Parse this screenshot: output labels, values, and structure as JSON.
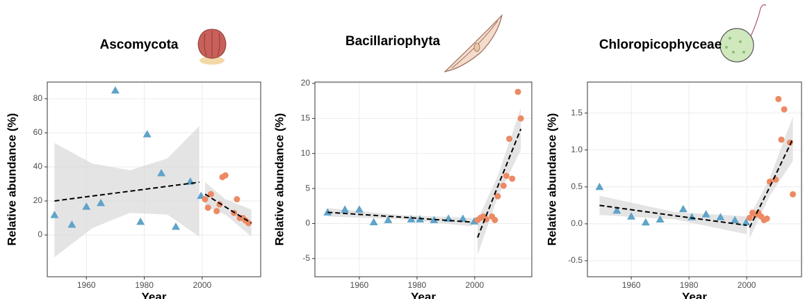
{
  "chart_data": [
    {
      "type": "scatter",
      "title": "Ascomycota",
      "x_label": "Year",
      "y_label": "Relative abundance (%)",
      "xlim": [
        1946.5,
        2020.2
      ],
      "ylim": [
        -24.5,
        89.8
      ],
      "xticks": [
        1960,
        1980,
        2000
      ],
      "yticks": [
        0,
        20,
        40,
        60,
        80
      ],
      "grid": true,
      "series": [
        {
          "color": "#5fa3c9",
          "marker": "triangle",
          "x": [
            1949,
            1955,
            1960,
            1965,
            1970,
            1978.7,
            1981,
            1985.9,
            1990.9,
            1995.9,
            1999.6
          ],
          "values": [
            11.8,
            6.1,
            16.7,
            18.8,
            84.9,
            7.8,
            59.2,
            36.3,
            4.9,
            31.4,
            23
          ]
        },
        {
          "color": "#ec8a63",
          "marker": "circle",
          "x": [
            2001,
            2002,
            2003,
            2005,
            2006,
            2007,
            2008,
            2011,
            2012,
            2013,
            2014,
            2015,
            2016
          ],
          "values": [
            21,
            16,
            24,
            14,
            18,
            34,
            35,
            13,
            21,
            10,
            10,
            8.5,
            7
          ]
        }
      ],
      "fits": [
        {
          "color": "#000000",
          "band_color": "#d9d9d9",
          "x": [
            1949,
            1962,
            1975,
            1988,
            1999
          ],
          "values": [
            20,
            22.9,
            25.7,
            28.6,
            31
          ],
          "upper": [
            54,
            42,
            38,
            45,
            64
          ],
          "lower": [
            -13,
            4,
            13,
            12,
            -1
          ]
        },
        {
          "color": "#000000",
          "band_color": "#d9d9d9",
          "x": [
            2001,
            2008,
            2017
          ],
          "values": [
            24,
            16.5,
            7
          ],
          "upper": [
            31,
            21,
            15
          ],
          "lower": [
            17,
            12,
            -1
          ]
        }
      ]
    },
    {
      "type": "scatter",
      "title": "Bacillariophyta",
      "x_label": "Year",
      "y_label": "Relative abundance (%)",
      "xlim": [
        1944.6,
        2019.8
      ],
      "ylim": [
        -7.6,
        20.2
      ],
      "xticks": [
        1960,
        1980,
        2000
      ],
      "yticks": [
        -5,
        0,
        5,
        10,
        15,
        20
      ],
      "grid": true,
      "series": [
        {
          "color": "#5fa3c9",
          "marker": "triangle",
          "x": [
            1949,
            1955,
            1960,
            1965,
            1970,
            1978,
            1981,
            1985.9,
            1990.9,
            1995.9,
            1999.8
          ],
          "values": [
            1.6,
            2.0,
            2.0,
            0.2,
            0.5,
            0.6,
            0.6,
            0.5,
            0.7,
            0.7,
            0.3
          ]
        },
        {
          "color": "#ec8a63",
          "marker": "circle",
          "x": [
            2001,
            2002,
            2003,
            2004,
            2006,
            2007,
            2008,
            2010,
            2011,
            2012,
            2013,
            2015,
            2016
          ],
          "values": [
            0.5,
            0.8,
            1.0,
            0.6,
            1.0,
            0.5,
            3.9,
            5.4,
            6.8,
            12.1,
            6.4,
            18.8,
            15.0
          ]
        }
      ],
      "fits": [
        {
          "color": "#000000",
          "band_color": "#d9d9d9",
          "x": [
            1949,
            1975,
            1999
          ],
          "values": [
            1.6,
            0.9,
            0.2
          ],
          "upper": [
            2.2,
            1.2,
            0.8
          ],
          "lower": [
            1.0,
            0.6,
            -0.4
          ]
        },
        {
          "color": "#000000",
          "band_color": "#d9d9d9",
          "x": [
            2001,
            2008,
            2016
          ],
          "values": [
            -2,
            5.3,
            13.5
          ],
          "upper": [
            0.5,
            6.8,
            16.5
          ],
          "lower": [
            -4.5,
            3.8,
            10.5
          ]
        }
      ]
    },
    {
      "type": "scatter",
      "title": "Chloropicophyceae",
      "x_label": "Year",
      "y_label": "Relative abundance (%)",
      "xlim": [
        1944.8,
        2019
      ],
      "ylim": [
        -0.717,
        1.92
      ],
      "xticks": [
        1960,
        1980,
        2000
      ],
      "yticks": [
        -0.5,
        {
          "value": 0,
          "label": "0.0"
        },
        0.5,
        {
          "value": 1,
          "label": "1.0"
        },
        1.5
      ],
      "grid": true,
      "series": [
        {
          "color": "#5fa3c9",
          "marker": "triangle",
          "x": [
            1949,
            1955,
            1960,
            1965,
            1970,
            1978,
            1981,
            1985.9,
            1990.9,
            1995.9,
            1999.8
          ],
          "values": [
            0.5,
            0.18,
            0.1,
            0.02,
            0.06,
            0.2,
            0.09,
            0.13,
            0.09,
            0.05,
            0.02
          ]
        },
        {
          "color": "#ec8a63",
          "marker": "circle",
          "x": [
            2001,
            2002,
            2003,
            2004,
            2005,
            2006,
            2007,
            2008,
            2010,
            2011,
            2012,
            2013,
            2015,
            2016
          ],
          "values": [
            0.08,
            0.15,
            0.12,
            0.15,
            0.1,
            0.05,
            0.07,
            0.57,
            0.6,
            1.69,
            1.14,
            1.55,
            1.1,
            0.4
          ]
        }
      ],
      "fits": [
        {
          "color": "#000000",
          "band_color": "#d9d9d9",
          "x": [
            1949,
            1975,
            2000
          ],
          "values": [
            0.25,
            0.11,
            -0.02
          ],
          "upper": [
            0.38,
            0.16,
            0.1
          ],
          "lower": [
            0.12,
            0.06,
            -0.14
          ]
        },
        {
          "color": "#000000",
          "band_color": "#d9d9d9",
          "x": [
            2001,
            2008,
            2016
          ],
          "values": [
            -0.05,
            0.5,
            1.15
          ],
          "upper": [
            0.1,
            0.62,
            1.45
          ],
          "lower": [
            -0.2,
            0.38,
            0.85
          ]
        }
      ]
    }
  ]
}
